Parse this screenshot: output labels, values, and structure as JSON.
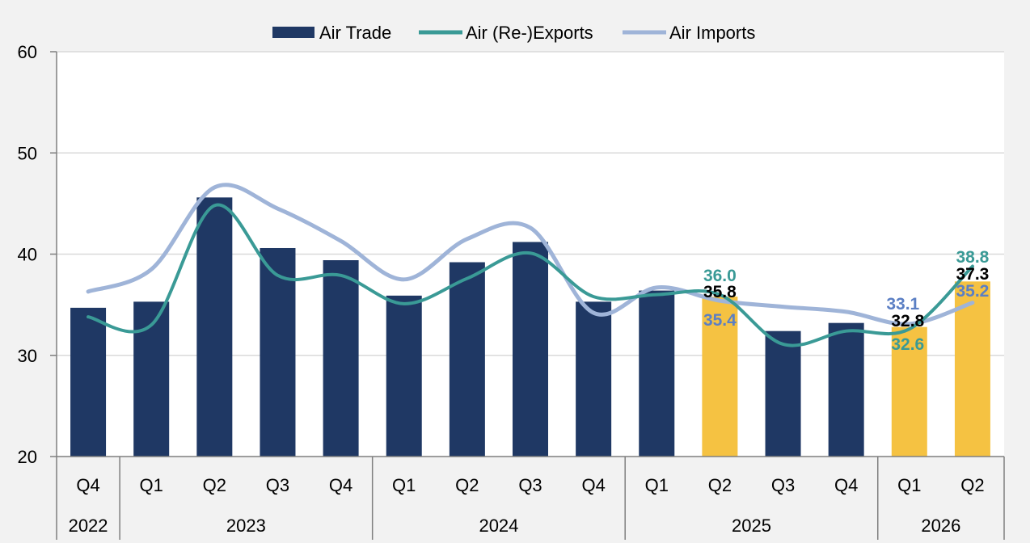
{
  "chart_data": {
    "type": "bar",
    "title": "",
    "xlabel": "",
    "ylabel": "",
    "ylim": [
      20,
      60
    ],
    "yticks": [
      "20",
      "30",
      "40",
      "50",
      "60"
    ],
    "grid": true,
    "legend_position": "top-center",
    "categories": [
      "Q4",
      "Q1",
      "Q2",
      "Q3",
      "Q4",
      "Q1",
      "Q2",
      "Q3",
      "Q4",
      "Q1",
      "Q2",
      "Q3",
      "Q4",
      "Q1",
      "Q2"
    ],
    "years": [
      {
        "label": "2022",
        "span": 1
      },
      {
        "label": "2023",
        "span": 4
      },
      {
        "label": "2024",
        "span": 4
      },
      {
        "label": "2025",
        "span": 4
      },
      {
        "label": "2026",
        "span": 2
      }
    ],
    "series": [
      {
        "name": "Air Trade",
        "kind": "bar",
        "color": "#1f3864",
        "forecast_color": "#f5c242",
        "forecast_from_index": 10,
        "forecast_indices": [
          10,
          13,
          14
        ],
        "values": [
          34.7,
          35.3,
          45.6,
          40.6,
          39.4,
          35.9,
          39.2,
          41.2,
          35.3,
          36.4,
          35.8,
          32.4,
          33.2,
          32.8,
          37.3
        ]
      },
      {
        "name": "Air (Re-)Exports",
        "kind": "line",
        "color": "#3a9a96",
        "values": [
          33.8,
          33.0,
          44.8,
          37.9,
          37.9,
          35.1,
          37.6,
          40.1,
          35.8,
          36.0,
          36.0,
          31.1,
          32.4,
          32.6,
          38.8
        ]
      },
      {
        "name": "Air Imports",
        "kind": "line",
        "color": "#9fb4d8",
        "values": [
          36.3,
          38.5,
          46.6,
          44.5,
          41.3,
          37.5,
          41.5,
          42.6,
          34.2,
          36.7,
          35.4,
          34.8,
          34.3,
          33.1,
          35.2
        ]
      }
    ],
    "annotations": [
      {
        "text": "36.0",
        "series": "Air (Re-)Exports",
        "index": 10,
        "color": "#3a9a96"
      },
      {
        "text": "35.8",
        "series": "Air Trade",
        "index": 10,
        "color": "#000000"
      },
      {
        "text": "35.4",
        "series": "Air Imports",
        "index": 10,
        "color": "#5b7fc4"
      },
      {
        "text": "33.1",
        "series": "Air Imports",
        "index": 13,
        "color": "#5b7fc4"
      },
      {
        "text": "32.8",
        "series": "Air Trade",
        "index": 13,
        "color": "#000000"
      },
      {
        "text": "32.6",
        "series": "Air (Re-)Exports",
        "index": 13,
        "color": "#3a9a96"
      },
      {
        "text": "38.8",
        "series": "Air (Re-)Exports",
        "index": 14,
        "color": "#3a9a96"
      },
      {
        "text": "37.3",
        "series": "Air Trade",
        "index": 14,
        "color": "#000000"
      },
      {
        "text": "35.2",
        "series": "Air Imports",
        "index": 14,
        "color": "#5b7fc4"
      }
    ]
  }
}
